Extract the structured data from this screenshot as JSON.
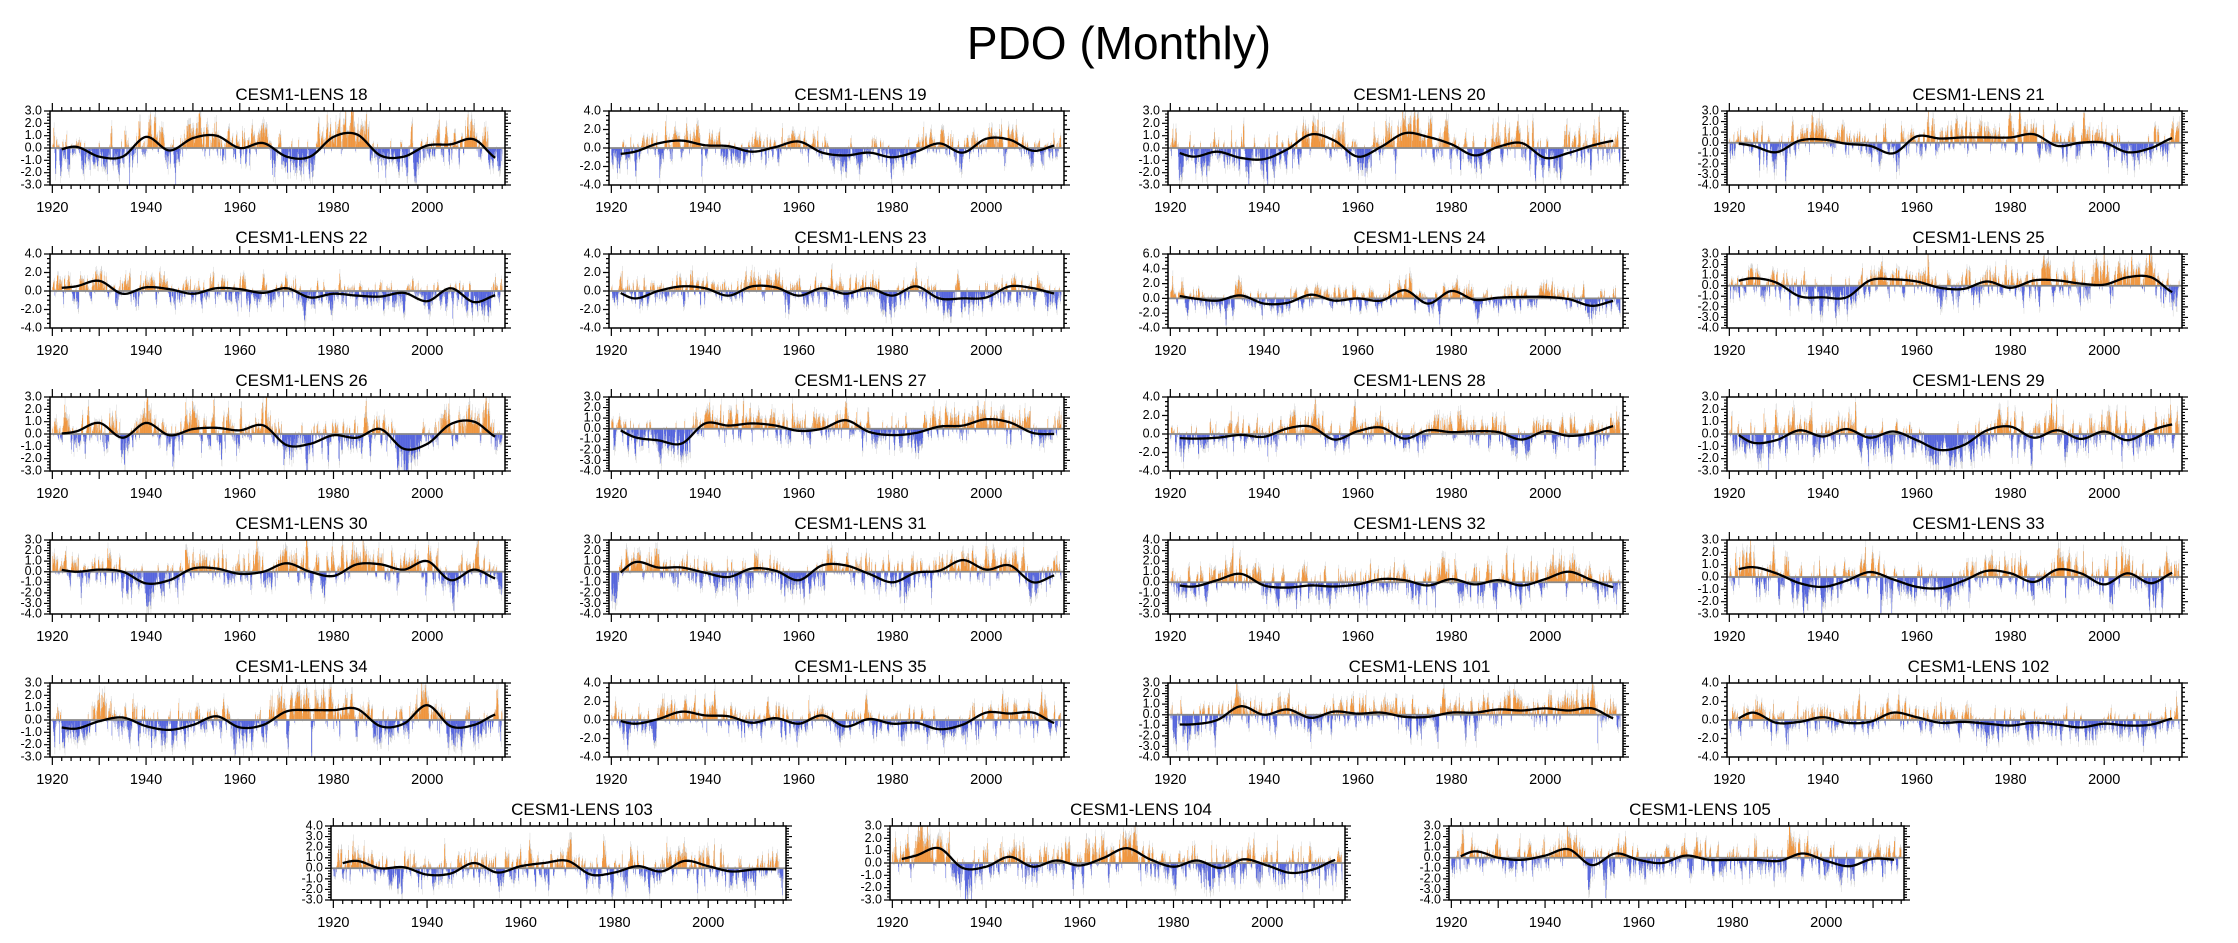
{
  "title": "PDO (Monthly)",
  "chart_data": {
    "type": "bar",
    "title": "PDO (Monthly)",
    "x_ticks": [
      1920,
      1940,
      1960,
      1980,
      2000
    ],
    "x_range": [
      1920,
      2016
    ],
    "x_minor_step_years": 2,
    "bar_resolution": "monthly",
    "grid": "off",
    "colors": {
      "positive_bar": "#F6891F",
      "negative_bar": "#3B4EE0",
      "shadow_bar": "#c9c9c9",
      "smooth_line": "#000000",
      "zero_line": "#8a8a8a",
      "axis": "#000000"
    },
    "smoothed_x_years": [
      1920,
      1925,
      1930,
      1935,
      1940,
      1945,
      1950,
      1955,
      1960,
      1965,
      1970,
      1975,
      1980,
      1985,
      1990,
      1995,
      2000,
      2005,
      2010,
      2015
    ],
    "panels": [
      {
        "label": "CESM1-LENS 18",
        "ylim": [
          -3,
          3
        ],
        "ytick_step": 1,
        "smoothed": [
          -0.3,
          0.1,
          -0.7,
          -0.7,
          0.9,
          -0.2,
          0.8,
          1.0,
          0.0,
          0.4,
          -0.7,
          -0.7,
          0.9,
          1.1,
          -0.6,
          -0.7,
          0.2,
          0.3,
          0.7,
          -0.9
        ]
      },
      {
        "label": "CESM1-LENS 19",
        "ylim": [
          -4,
          4
        ],
        "ytick_step": 2,
        "smoothed": [
          -0.7,
          -0.4,
          0.5,
          0.8,
          0.3,
          0.2,
          -0.4,
          0.1,
          0.7,
          -0.5,
          -0.8,
          -0.5,
          -1.0,
          -0.4,
          0.5,
          -0.5,
          1.0,
          0.9,
          -0.3,
          0.3
        ]
      },
      {
        "label": "CESM1-LENS 20",
        "ylim": [
          -3,
          3
        ],
        "ytick_step": 1,
        "smoothed": [
          -0.2,
          -0.7,
          -0.3,
          -0.8,
          -0.9,
          -0.1,
          1.1,
          0.6,
          -0.7,
          0.1,
          1.2,
          0.9,
          0.3,
          -0.6,
          0.1,
          0.4,
          -0.8,
          -0.4,
          0.2,
          0.6
        ]
      },
      {
        "label": "CESM1-LENS 21",
        "ylim": [
          -4,
          3
        ],
        "ytick_step": 1,
        "smoothed": [
          0.0,
          -0.3,
          -0.9,
          0.2,
          0.3,
          -0.1,
          -0.3,
          -1.0,
          0.6,
          0.4,
          0.5,
          0.5,
          0.5,
          0.8,
          -0.3,
          0.0,
          0.0,
          -0.9,
          -0.5,
          0.5
        ]
      },
      {
        "label": "CESM1-LENS 22",
        "ylim": [
          -4,
          4
        ],
        "ytick_step": 2,
        "smoothed": [
          0.3,
          0.5,
          1.1,
          -0.3,
          0.4,
          0.2,
          -0.3,
          0.3,
          0.2,
          -0.2,
          0.3,
          -0.7,
          -0.3,
          -0.5,
          -0.6,
          -0.2,
          -1.1,
          0.3,
          -1.2,
          -0.4
        ]
      },
      {
        "label": "CESM1-LENS 23",
        "ylim": [
          -4,
          4
        ],
        "ytick_step": 2,
        "smoothed": [
          0.2,
          -0.8,
          0.0,
          0.5,
          0.3,
          -0.5,
          0.5,
          0.4,
          -0.5,
          0.3,
          -0.3,
          0.3,
          -0.5,
          0.5,
          -0.8,
          -0.8,
          -0.7,
          0.5,
          0.3,
          -0.3
        ]
      },
      {
        "label": "CESM1-LENS 24",
        "ylim": [
          -4,
          6
        ],
        "ytick_step": 2,
        "smoothed": [
          0.5,
          0.0,
          -0.3,
          0.4,
          -0.7,
          -0.6,
          0.5,
          -0.3,
          0.0,
          -0.3,
          1.1,
          -0.7,
          1.0,
          -0.2,
          0.1,
          0.2,
          0.2,
          -0.1,
          -1.0,
          -0.3
        ]
      },
      {
        "label": "CESM1-LENS 25",
        "ylim": [
          -4,
          3
        ],
        "ytick_step": 1,
        "smoothed": [
          0.3,
          0.7,
          0.3,
          -1.0,
          -1.1,
          -1.1,
          0.5,
          0.6,
          0.4,
          -0.2,
          -0.3,
          0.4,
          -0.2,
          0.5,
          0.5,
          0.2,
          0.1,
          0.8,
          0.8,
          -0.7
        ]
      },
      {
        "label": "CESM1-LENS 26",
        "ylim": [
          -3,
          3
        ],
        "ytick_step": 1,
        "smoothed": [
          0.0,
          0.2,
          0.9,
          -0.3,
          0.9,
          -0.1,
          0.4,
          0.5,
          0.3,
          0.7,
          -0.9,
          -0.8,
          -0.1,
          -0.3,
          0.4,
          -1.2,
          -0.8,
          0.8,
          1.0,
          -0.3
        ]
      },
      {
        "label": "CESM1-LENS 27",
        "ylim": [
          -4,
          3
        ],
        "ytick_step": 1,
        "smoothed": [
          0.2,
          -0.8,
          -1.1,
          -1.4,
          0.5,
          0.3,
          0.5,
          0.3,
          -0.2,
          0.0,
          0.8,
          -0.3,
          -0.6,
          -0.4,
          0.2,
          0.3,
          0.9,
          0.6,
          -0.4,
          -0.5
        ]
      },
      {
        "label": "CESM1-LENS 28",
        "ylim": [
          -4,
          4
        ],
        "ytick_step": 2,
        "smoothed": [
          -0.4,
          -0.5,
          -0.4,
          -0.1,
          -0.3,
          0.6,
          0.8,
          -0.6,
          0.3,
          0.7,
          -0.5,
          0.4,
          0.2,
          0.3,
          0.2,
          -0.6,
          0.3,
          -0.2,
          0.1,
          0.9
        ]
      },
      {
        "label": "CESM1-LENS 29",
        "ylim": [
          -3,
          3
        ],
        "ytick_step": 1,
        "smoothed": [
          0.3,
          -0.7,
          -0.5,
          0.3,
          -0.2,
          0.4,
          -0.3,
          0.2,
          -0.5,
          -1.3,
          -0.9,
          0.3,
          0.6,
          -0.3,
          0.3,
          -0.4,
          0.2,
          -0.5,
          0.3,
          0.8
        ]
      },
      {
        "label": "CESM1-LENS 30",
        "ylim": [
          -4,
          3
        ],
        "ytick_step": 1,
        "smoothed": [
          0.3,
          0.0,
          0.2,
          0.0,
          -1.1,
          -0.8,
          0.3,
          0.3,
          -0.2,
          0.0,
          0.8,
          0.0,
          -0.4,
          0.7,
          0.7,
          0.2,
          1.0,
          -0.8,
          0.2,
          -0.7
        ]
      },
      {
        "label": "CESM1-LENS 31",
        "ylim": [
          -4,
          3
        ],
        "ytick_step": 1,
        "smoothed": [
          -0.7,
          0.9,
          0.4,
          0.4,
          -0.1,
          -0.5,
          0.3,
          0.1,
          -0.8,
          0.6,
          0.6,
          -0.2,
          -1.0,
          -0.1,
          0.1,
          1.1,
          0.2,
          0.6,
          -1.0,
          -0.3
        ]
      },
      {
        "label": "CESM1-LENS 32",
        "ylim": [
          -3,
          4
        ],
        "ytick_step": 1,
        "smoothed": [
          -0.2,
          -0.4,
          0.2,
          0.8,
          -0.3,
          -0.5,
          -0.3,
          -0.4,
          -0.2,
          0.3,
          0.2,
          -0.3,
          0.3,
          -0.2,
          0.2,
          -0.3,
          0.3,
          1.0,
          0.2,
          -0.5
        ]
      },
      {
        "label": "CESM1-LENS 33",
        "ylim": [
          -3,
          3
        ],
        "ytick_step": 1,
        "smoothed": [
          0.5,
          0.8,
          0.3,
          -0.5,
          -0.8,
          -0.3,
          0.4,
          -0.2,
          -0.8,
          -0.9,
          -0.3,
          0.5,
          0.3,
          -0.4,
          0.6,
          0.3,
          -0.6,
          0.3,
          -0.5,
          0.4
        ]
      },
      {
        "label": "CESM1-LENS 34",
        "ylim": [
          -3,
          3
        ],
        "ytick_step": 1,
        "smoothed": [
          -0.5,
          -0.7,
          -0.1,
          0.2,
          -0.5,
          -0.8,
          -0.4,
          0.3,
          -0.6,
          -0.4,
          0.7,
          0.8,
          0.8,
          0.9,
          -0.5,
          -0.3,
          1.2,
          -0.5,
          -0.4,
          0.5
        ]
      },
      {
        "label": "CESM1-LENS 35",
        "ylim": [
          -4,
          4
        ],
        "ytick_step": 2,
        "smoothed": [
          0.1,
          -0.4,
          0.1,
          0.9,
          0.5,
          0.4,
          -0.3,
          0.2,
          -0.4,
          0.5,
          -0.7,
          0.1,
          -0.4,
          -0.3,
          -1.0,
          -0.5,
          0.8,
          0.7,
          0.8,
          -0.4
        ]
      },
      {
        "label": "CESM1-LENS 101",
        "ylim": [
          -4,
          3
        ],
        "ytick_step": 1,
        "smoothed": [
          -0.9,
          -0.9,
          -0.5,
          0.8,
          0.0,
          0.5,
          -0.3,
          0.3,
          0.1,
          0.2,
          -0.2,
          -0.2,
          0.2,
          0.2,
          0.5,
          0.4,
          0.6,
          0.4,
          0.6,
          -0.4
        ]
      },
      {
        "label": "CESM1-LENS 102",
        "ylim": [
          -4,
          4
        ],
        "ytick_step": 2,
        "smoothed": [
          -0.3,
          0.8,
          -0.3,
          -0.2,
          0.3,
          -0.3,
          -0.2,
          0.8,
          0.3,
          -0.3,
          -0.2,
          -0.4,
          -0.6,
          -0.3,
          -0.5,
          -0.8,
          -0.4,
          -0.6,
          -0.5,
          0.2
        ]
      },
      {
        "label": "CESM1-LENS 103",
        "ylim": [
          -3,
          4
        ],
        "ytick_step": 1,
        "smoothed": [
          0.3,
          0.7,
          0.0,
          0.1,
          -0.6,
          -0.5,
          0.5,
          -0.4,
          0.2,
          0.5,
          0.7,
          -0.6,
          -0.4,
          0.2,
          -0.3,
          0.7,
          0.2,
          -0.3,
          -0.1,
          -0.1
        ]
      },
      {
        "label": "CESM1-LENS 104",
        "ylim": [
          -3,
          3
        ],
        "ytick_step": 1,
        "smoothed": [
          0.2,
          0.6,
          1.2,
          -0.4,
          -0.3,
          0.5,
          -0.3,
          0.2,
          -0.2,
          0.4,
          1.2,
          0.3,
          -0.3,
          0.2,
          -0.4,
          0.3,
          -0.2,
          -0.8,
          -0.5,
          0.3
        ]
      },
      {
        "label": "CESM1-LENS 105",
        "ylim": [
          -4,
          3
        ],
        "ytick_step": 1,
        "smoothed": [
          -0.2,
          0.6,
          0.0,
          -0.2,
          0.2,
          0.8,
          -0.7,
          0.4,
          -0.2,
          -0.5,
          0.2,
          -0.2,
          -0.2,
          -0.2,
          -0.3,
          0.4,
          -0.3,
          -0.8,
          -0.1,
          -0.2
        ]
      }
    ]
  }
}
